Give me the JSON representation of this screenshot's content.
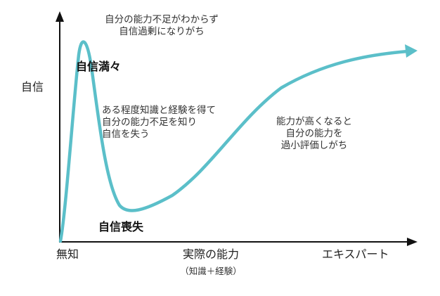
{
  "diagram": {
    "y_axis_label": "自信",
    "x_axis_label": "実際の能力",
    "x_axis_sublabel": "（知識＋経験）",
    "x_start_label": "無知",
    "x_end_label": "エキスパート",
    "curve_color": "#5bbfc9",
    "axis_color": "#111111",
    "annotations": {
      "peak_note_line1": "自分の能力不足がわからず",
      "peak_note_line2": "自信過剰になりがち",
      "peak_label": "自信満々",
      "middle_note_line1": "ある程度知識と経験を得て",
      "middle_note_line2": "自分の能力不足を知り",
      "middle_note_line3": "自信を失う",
      "valley_label": "自信喪失",
      "right_note_line1": "能力が高くなると",
      "right_note_line2": "自分の能力を",
      "right_note_line3": "過小評価しがち"
    }
  }
}
